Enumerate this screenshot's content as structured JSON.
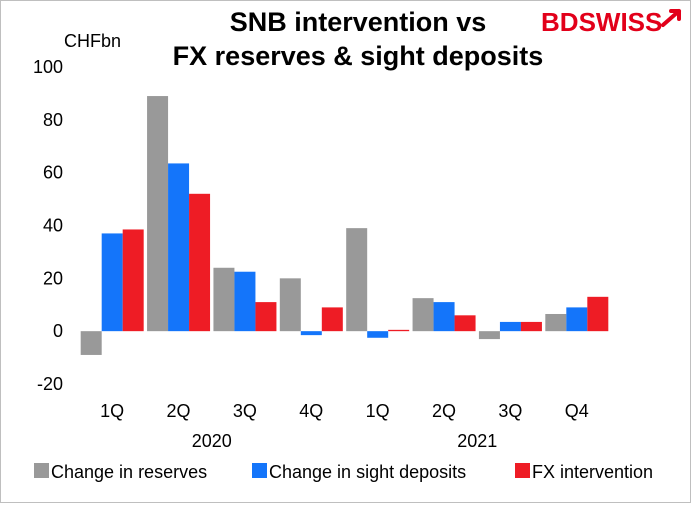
{
  "header": {
    "title_line1": "SNB intervention vs",
    "title_line2": "FX reserves & sight deposits",
    "unit": "CHFbn"
  },
  "logo": {
    "part1": "BD",
    "part2": "SWISS",
    "color": "#e2001a"
  },
  "chart_data": {
    "type": "bar",
    "categories": [
      "1Q",
      "2Q",
      "3Q",
      "4Q",
      "1Q",
      "2Q",
      "3Q",
      "Q4"
    ],
    "groups": [
      {
        "label": "2020",
        "span": [
          0,
          3
        ]
      },
      {
        "label": "2021",
        "span": [
          4,
          7
        ]
      }
    ],
    "series": [
      {
        "name": "Change in reserves",
        "color": "#999999",
        "values": [
          -9,
          89,
          24,
          20,
          39,
          12.5,
          -3,
          6.5
        ]
      },
      {
        "name": "Change in sight deposits",
        "color": "#1475fa",
        "values": [
          37,
          63.5,
          22.5,
          -1.5,
          -2.5,
          11,
          3.5,
          9
        ]
      },
      {
        "name": "FX intervention",
        "color": "#ee1c25",
        "values": [
          38.5,
          52,
          11,
          9,
          0.5,
          6,
          3.5,
          13
        ]
      }
    ],
    "ylim": [
      -20,
      100
    ],
    "yticks": [
      -20,
      0,
      20,
      40,
      60,
      80,
      100
    ],
    "legend_position": "bottom"
  }
}
